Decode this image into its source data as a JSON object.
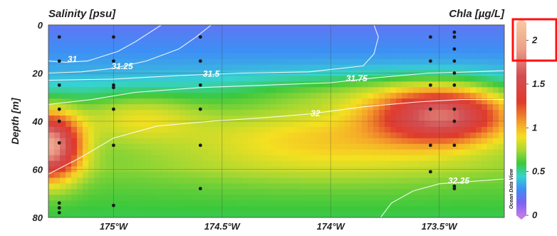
{
  "chart_data": {
    "type": "heatmap",
    "title_left": "Salinity [psu]",
    "title_right": "Chla [µg/L]",
    "ylabel": "Depth [m]",
    "watermark": "Ocean Data View",
    "xlim": [
      175.3,
      173.2
    ],
    "ylim": [
      0,
      80
    ],
    "x_ticks": [
      {
        "value": 175.0,
        "label": "175°W"
      },
      {
        "value": 174.5,
        "label": "174.5°W"
      },
      {
        "value": 174.0,
        "label": "174°W"
      },
      {
        "value": 173.5,
        "label": "173.5°W"
      }
    ],
    "y_ticks": [
      0,
      20,
      40,
      60,
      80
    ],
    "colorbar": {
      "label": "Chla [µg/L]",
      "range": [
        0,
        2.2
      ],
      "ticks": [
        0,
        0.5,
        1,
        1.5,
        2
      ],
      "stops": [
        {
          "v": 0.0,
          "color": "#c07ae8"
        },
        {
          "v": 0.15,
          "color": "#7c62f2"
        },
        {
          "v": 0.3,
          "color": "#3e8ef5"
        },
        {
          "v": 0.45,
          "color": "#36d3d0"
        },
        {
          "v": 0.6,
          "color": "#3cc83c"
        },
        {
          "v": 0.75,
          "color": "#a9d832"
        },
        {
          "v": 0.9,
          "color": "#f4e020"
        },
        {
          "v": 1.05,
          "color": "#f5a52a"
        },
        {
          "v": 1.3,
          "color": "#e03a2c"
        },
        {
          "v": 1.6,
          "color": "#d24e52"
        },
        {
          "v": 1.9,
          "color": "#ec9e88"
        },
        {
          "v": 2.2,
          "color": "#f6c79e"
        }
      ]
    },
    "chla_blobs": [
      {
        "lon": 175.3,
        "depth": 50,
        "amp": 1.35,
        "rlon": 0.14,
        "rdepth": 13
      },
      {
        "lon": 173.48,
        "depth": 37,
        "amp": 1.05,
        "rlon": 0.3,
        "rdepth": 11
      },
      {
        "lon": 174.0,
        "depth": 46,
        "amp": 0.38,
        "rlon": 0.75,
        "rdepth": 15
      },
      {
        "lon": 174.9,
        "depth": 38,
        "amp": 0.3,
        "rlon": 0.3,
        "rdepth": 10
      },
      {
        "lon": 173.9,
        "depth": 28,
        "amp": 0.18,
        "rlon": 0.55,
        "rdepth": 8
      }
    ],
    "salinity_contours": [
      {
        "label": "31",
        "label_lon": 175.19,
        "label_depth": 14.5,
        "line": [
          [
            175.3,
            15
          ],
          [
            175.22,
            15.5
          ],
          [
            175.12,
            15
          ],
          [
            175.05,
            13
          ],
          [
            174.98,
            11
          ],
          [
            174.9,
            7
          ],
          [
            174.78,
            0
          ]
        ]
      },
      {
        "label": "31.25",
        "label_lon": 174.96,
        "label_depth": 17.5,
        "line": [
          [
            175.3,
            20
          ],
          [
            175.15,
            19.5
          ],
          [
            175.0,
            18
          ],
          [
            174.85,
            15
          ],
          [
            174.7,
            10
          ],
          [
            174.62,
            5
          ],
          [
            174.55,
            0
          ]
        ]
      },
      {
        "label": "31.5",
        "label_lon": 174.55,
        "label_depth": 20.5,
        "line": [
          [
            175.3,
            23
          ],
          [
            175.0,
            22.5
          ],
          [
            174.7,
            21
          ],
          [
            174.4,
            20
          ],
          [
            174.1,
            19.5
          ],
          [
            173.85,
            17
          ],
          [
            173.8,
            12
          ],
          [
            173.78,
            5
          ],
          [
            173.8,
            0
          ]
        ]
      },
      {
        "label": "31.75",
        "label_lon": 173.88,
        "label_depth": 22.5,
        "line": [
          [
            175.3,
            33
          ],
          [
            175.1,
            31
          ],
          [
            174.9,
            28
          ],
          [
            174.6,
            26
          ],
          [
            174.3,
            25
          ],
          [
            174.0,
            24
          ],
          [
            173.8,
            22
          ],
          [
            173.55,
            20
          ],
          [
            173.35,
            19.5
          ],
          [
            173.2,
            19
          ]
        ]
      },
      {
        "label": "32",
        "label_lon": 174.07,
        "label_depth": 37,
        "line": [
          [
            175.3,
            62
          ],
          [
            175.15,
            55
          ],
          [
            175.0,
            47
          ],
          [
            174.8,
            42
          ],
          [
            174.55,
            40
          ],
          [
            174.3,
            38.5
          ],
          [
            174.1,
            37
          ],
          [
            173.85,
            34
          ],
          [
            173.6,
            32
          ],
          [
            173.4,
            31
          ],
          [
            173.2,
            31
          ]
        ]
      },
      {
        "label": "32.25",
        "label_lon": 173.41,
        "label_depth": 65,
        "line": [
          [
            173.77,
            80
          ],
          [
            173.72,
            74
          ],
          [
            173.62,
            69
          ],
          [
            173.5,
            66
          ],
          [
            173.35,
            65
          ],
          [
            173.2,
            64
          ]
        ]
      }
    ],
    "stations": [
      {
        "lon": 175.25,
        "depths": [
          5,
          15,
          25,
          35,
          40,
          49,
          74,
          76,
          78
        ]
      },
      {
        "lon": 175.0,
        "depths": [
          5,
          15,
          25,
          26,
          35,
          50,
          75
        ]
      },
      {
        "lon": 174.6,
        "depths": [
          5,
          15,
          25,
          35,
          50,
          68
        ]
      },
      {
        "lon": 173.54,
        "depths": [
          5,
          15,
          25,
          35,
          50,
          61
        ]
      },
      {
        "lon": 173.43,
        "depths": [
          3,
          5,
          10,
          15,
          20,
          25,
          35,
          40,
          50,
          67,
          68
        ]
      }
    ]
  }
}
